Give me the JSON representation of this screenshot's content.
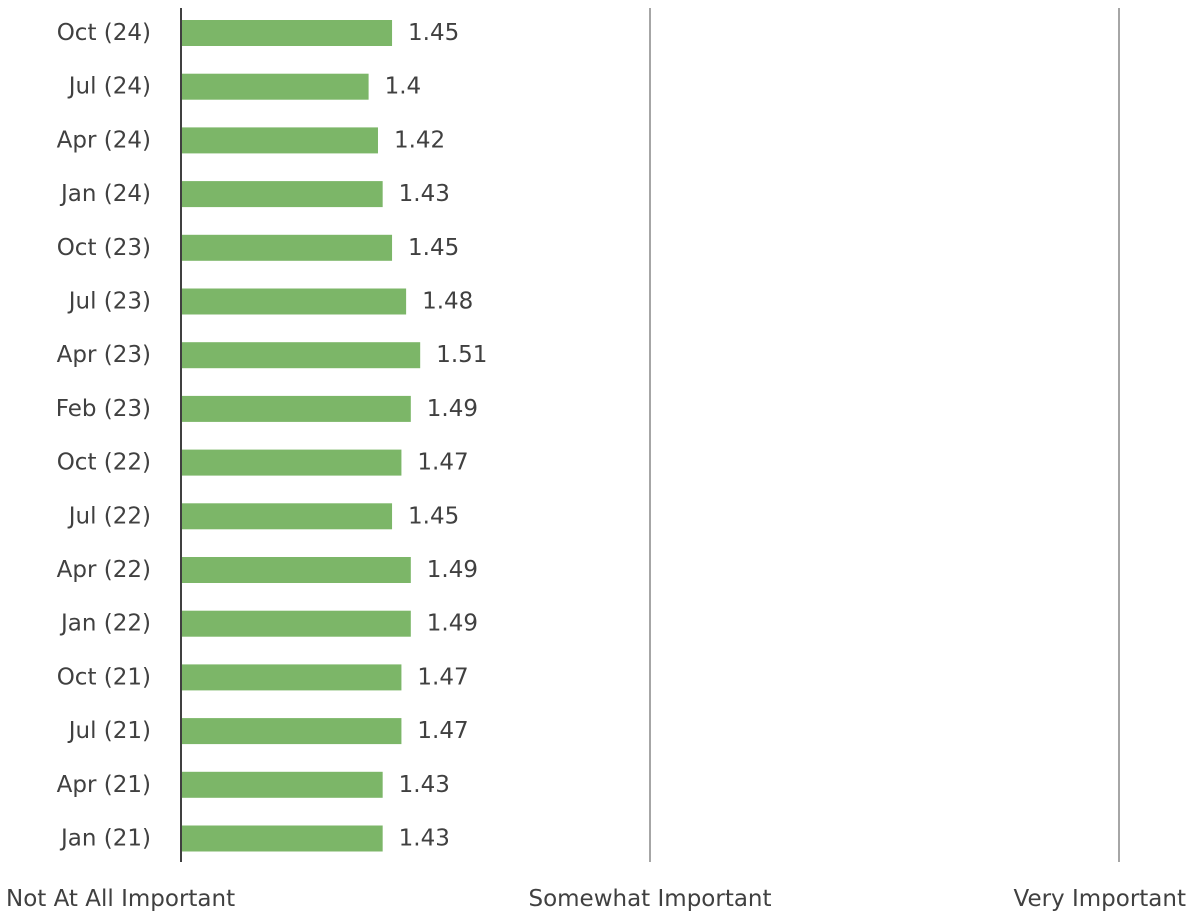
{
  "chart_data": {
    "type": "bar",
    "orientation": "horizontal",
    "title": "",
    "xlabel": "",
    "ylabel": "",
    "categories": [
      "Oct (24)",
      "Jul (24)",
      "Apr (24)",
      "Jan (24)",
      "Oct (23)",
      "Jul (23)",
      "Apr (23)",
      "Feb (23)",
      "Oct (22)",
      "Jul (22)",
      "Apr (22)",
      "Jan (22)",
      "Oct (21)",
      "Jul (21)",
      "Apr (21)",
      "Jan (21)"
    ],
    "values": [
      1.45,
      1.4,
      1.42,
      1.43,
      1.45,
      1.48,
      1.51,
      1.49,
      1.47,
      1.45,
      1.49,
      1.49,
      1.47,
      1.47,
      1.43,
      1.43
    ],
    "data_labels": [
      "1.45",
      "1.4",
      "1.42",
      "1.43",
      "1.45",
      "1.48",
      "1.51",
      "1.49",
      "1.47",
      "1.45",
      "1.49",
      "1.49",
      "1.47",
      "1.47",
      "1.43",
      "1.43"
    ],
    "xlim": [
      1,
      3
    ],
    "x_ticks": [
      {
        "value": 1,
        "label": "Not At All Important"
      },
      {
        "value": 2,
        "label": "Somewhat Important"
      },
      {
        "value": 3,
        "label": "Very Important"
      }
    ],
    "grid": true,
    "legend": "none",
    "colors": {
      "bar": "#7cb668",
      "axis": "#404040",
      "gridline": "#a6a6a6",
      "text": "#404040"
    }
  }
}
